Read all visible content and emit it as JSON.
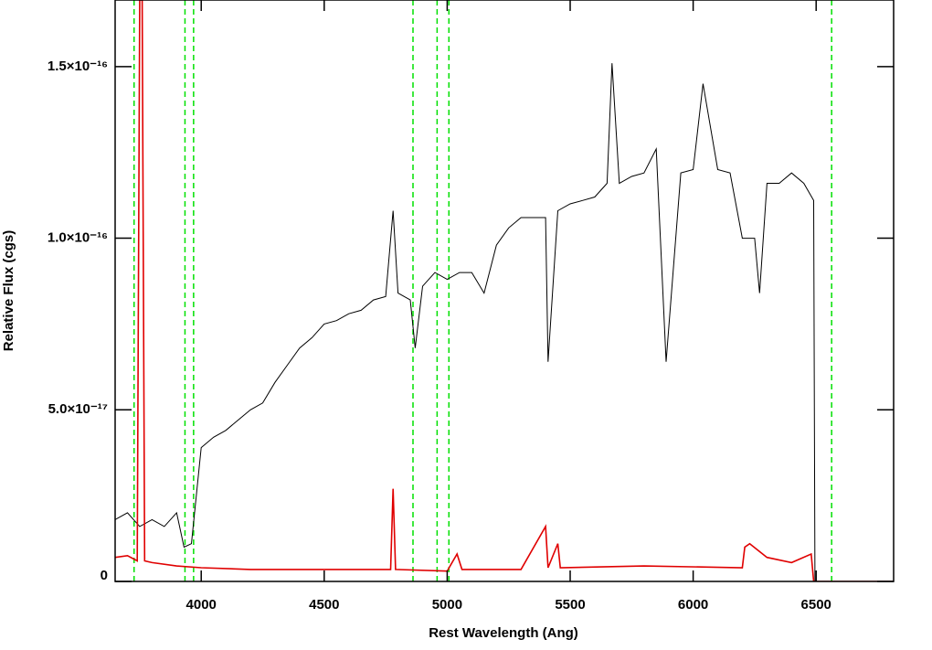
{
  "chart_data": {
    "type": "line",
    "xlabel": "Rest Wavelength (Ang)",
    "ylabel": "Relative Flux (cgs)",
    "xlim": [
      3650,
      6815
    ],
    "ylim": [
      0,
      1.694e-16
    ],
    "xticks": [
      4000,
      4500,
      5000,
      5500,
      6000,
      6500
    ],
    "yticks": [
      0,
      {
        "value": 5e-17,
        "label": "5.0×10⁻¹⁷"
      },
      {
        "value": 1e-16,
        "label": "1.0×10⁻¹⁶"
      },
      {
        "value": 1.5e-16,
        "label": "1.5×10⁻¹⁶"
      }
    ],
    "vlines": {
      "color": "#00e000",
      "x": [
        3727,
        3934,
        3969,
        4861,
        4959,
        5007,
        6563
      ]
    },
    "series": [
      {
        "color": "#000000",
        "x": [
          3650,
          3700,
          3750,
          3800,
          3850,
          3900,
          3930,
          3960,
          4000,
          4050,
          4100,
          4150,
          4200,
          4250,
          4300,
          4350,
          4400,
          4450,
          4500,
          4550,
          4600,
          4650,
          4700,
          4750,
          4780,
          4800,
          4850,
          4870,
          4900,
          4950,
          5000,
          5050,
          5100,
          5150,
          5200,
          5250,
          5300,
          5350,
          5400,
          5410,
          5450,
          5500,
          5550,
          5600,
          5650,
          5670,
          5700,
          5750,
          5800,
          5850,
          5890,
          5950,
          6000,
          6040,
          6100,
          6150,
          6200,
          6250,
          6270,
          6300,
          6350,
          6400,
          6450,
          6490,
          6495
        ],
        "values": [
          1.8e-17,
          2e-17,
          1.6e-17,
          1.8e-17,
          1.6e-17,
          2e-17,
          1e-17,
          1.1e-17,
          3.9e-17,
          4.2e-17,
          4.4e-17,
          4.7e-17,
          5e-17,
          5.2e-17,
          5.8e-17,
          6.3e-17,
          6.8e-17,
          7.1e-17,
          7.5e-17,
          7.6e-17,
          7.8e-17,
          7.9e-17,
          8.2e-17,
          8.3e-17,
          1.08e-16,
          8.4e-17,
          8.2e-17,
          6.8e-17,
          8.6e-17,
          9e-17,
          8.8e-17,
          9e-17,
          9e-17,
          8.4e-17,
          9.8e-17,
          1.03e-16,
          1.06e-16,
          1.06e-16,
          1.06e-16,
          6.4e-17,
          1.08e-16,
          1.1e-16,
          1.11e-16,
          1.12e-16,
          1.16e-16,
          1.51e-16,
          1.16e-16,
          1.18e-16,
          1.19e-16,
          1.26e-16,
          6.4e-17,
          1.19e-16,
          1.2e-16,
          1.45e-16,
          1.2e-16,
          1.19e-16,
          1e-16,
          1e-16,
          8.4e-17,
          1.16e-16,
          1.16e-16,
          1.19e-16,
          1.16e-16,
          1.11e-16,
          0
        ]
      },
      {
        "color": "#e00000",
        "x": [
          3650,
          3700,
          3740,
          3750,
          3760,
          3770,
          3800,
          3900,
          4000,
          4200,
          4500,
          4770,
          4780,
          4790,
          5000,
          5040,
          5060,
          5300,
          5400,
          5410,
          5450,
          5460,
          5800,
          6200,
          6210,
          6230,
          6300,
          6400,
          6480,
          6490,
          6815
        ],
        "values": [
          7e-18,
          7.5e-18,
          6e-18,
          1.694e-16,
          1.694e-16,
          6e-18,
          5.5e-18,
          4.5e-18,
          4e-18,
          3.5e-18,
          3.5e-18,
          3.5e-18,
          2.7e-17,
          3.5e-18,
          3e-18,
          8e-18,
          3.5e-18,
          3.5e-18,
          1.6e-17,
          4e-18,
          1.1e-17,
          4e-18,
          4.5e-18,
          4e-18,
          1e-17,
          1.1e-17,
          7e-18,
          5.5e-18,
          8e-18,
          0,
          0
        ]
      }
    ]
  }
}
